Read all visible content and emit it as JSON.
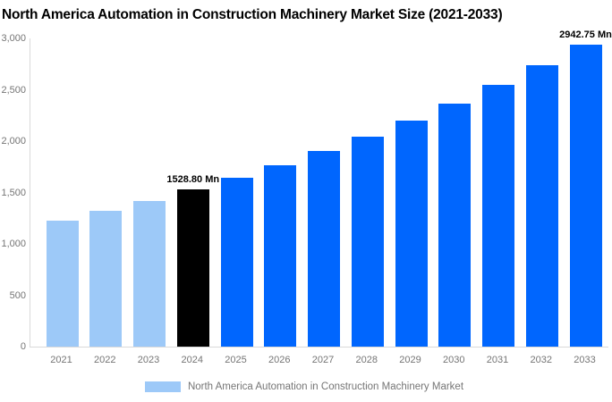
{
  "title": "North America Automation in Construction Machinery Market Size (2021-2033)",
  "colors": {
    "historical_bar": "#9dc9f8",
    "base_year_bar": "#000000",
    "forecast_bar": "#0066fe",
    "axis_line": "#d9d9d9",
    "axis_text": "#757575",
    "title_text": "#000000",
    "data_label_text": "#000000"
  },
  "chart_data": {
    "type": "bar",
    "title": "North America Automation in Construction Machinery Market Size (2021-2033)",
    "xlabel": "",
    "ylabel": "",
    "unit": "Mn",
    "categories": [
      "2021",
      "2022",
      "2023",
      "2024",
      "2025",
      "2026",
      "2027",
      "2028",
      "2029",
      "2030",
      "2031",
      "2032",
      "2033"
    ],
    "values": [
      1228.9,
      1321.7,
      1421.5,
      1528.8,
      1644.2,
      1768.4,
      1901.9,
      2045.4,
      2199.8,
      2365.9,
      2544.5,
      2736.6,
      2942.75
    ],
    "bar_colors": [
      "#9dc9f8",
      "#9dc9f8",
      "#9dc9f8",
      "#000000",
      "#0066fe",
      "#0066fe",
      "#0066fe",
      "#0066fe",
      "#0066fe",
      "#0066fe",
      "#0066fe",
      "#0066fe",
      "#0066fe"
    ],
    "data_labels": [
      {
        "category": "2024",
        "text": "1528.80 Mn"
      },
      {
        "category": "2033",
        "text": "2942.75 Mn"
      }
    ],
    "y_ticks": [
      "3,000",
      "2,500",
      "2,000",
      "1,500",
      "1,000",
      "500",
      "0"
    ],
    "ylim": [
      0,
      3000
    ],
    "grid": false,
    "legend_position": "bottom",
    "legend": {
      "label": "North America Automation in Construction Machinery Market",
      "swatch_color": "#9dc9f8"
    }
  }
}
